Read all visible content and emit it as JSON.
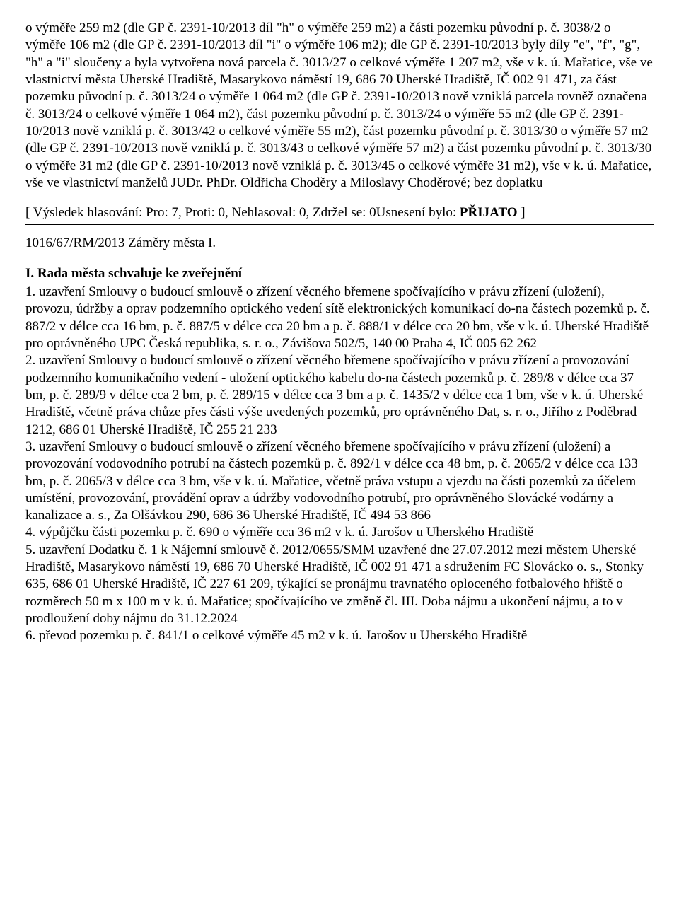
{
  "para1": "o výměře 259 m2 (dle GP č. 2391-10/2013 díl \"h\" o výměře 259 m2) a části pozemku původní p. č. 3038/2 o výměře 106 m2 (dle GP č. 2391-10/2013 díl \"i\" o výměře 106 m2); dle GP č. 2391-10/2013 byly díly \"e\", \"f\", \"g\", \"h\" a \"i\" sloučeny a byla vytvořena nová parcela č. 3013/27 o celkové výměře 1 207 m2, vše v k. ú. Mařatice, vše ve vlastnictví města Uherské Hradiště, Masarykovo náměstí 19, 686 70 Uherské Hradiště, IČ 002 91 471, za část pozemku původní p. č. 3013/24 o výměře 1 064 m2 (dle GP č. 2391-10/2013 nově vzniklá parcela rovněž označena č. 3013/24 o celkové výměře 1 064 m2), část pozemku původní p. č. 3013/24 o výměře 55 m2 (dle GP č. 2391-10/2013 nově vzniklá p. č. 3013/42 o celkové výměře 55 m2), část pozemku původní p. č. 3013/30 o výměře 57 m2 (dle GP č. 2391-10/2013 nově vzniklá p. č. 3013/43 o celkové výměře 57 m2) a část pozemku původní p. č. 3013/30 o výměře 31 m2 (dle GP č. 2391-10/2013 nově vzniklá p. č. 3013/45 o celkové výměře 31 m2), vše v k. ú. Mařatice, vše ve vlastnictví manželů JUDr. PhDr. Oldřicha Choděry a Miloslavy Choděrové; bez doplatku",
  "vote_prefix": "[ Výsledek hlasování: Pro: 7, Proti: 0, Nehlasoval: 0, Zdržel se: 0Usnesení bylo: ",
  "vote_bold": "PŘIJATO",
  "vote_suffix": " ]",
  "ref": "1016/67/RM/2013 Záměry města I.",
  "heading": "I. Rada města schvaluje ke zveřejnění",
  "para2": "1. uzavření Smlouvy o budoucí smlouvě o zřízení věcného břemene spočívajícího v právu zřízení (uložení), provozu, údržby a oprav podzemního optického vedení sítě elektronických komunikací do-na částech pozemků p. č. 887/2 v délce cca 16 bm, p. č. 887/5 v délce cca 20 bm a p. č. 888/1 v délce cca 20 bm, vše v k. ú. Uherské Hradiště pro oprávněného UPC Česká republika, s. r. o., Závišova 502/5, 140 00 Praha 4, IČ 005 62 262\n2. uzavření Smlouvy o budoucí smlouvě o zřízení věcného břemene spočívajícího v právu zřízení a provozování podzemního komunikačního vedení - uložení optického kabelu do-na částech pozemků p. č. 289/8 v délce cca 37 bm, p. č. 289/9 v délce cca 2 bm, p. č. 289/15 v délce cca 3 bm a p. č. 1435/2 v délce cca 1 bm, vše v k. ú. Uherské Hradiště, včetně práva chůze přes části výše uvedených pozemků, pro oprávněného Dat, s. r. o., Jiřího z Poděbrad 1212, 686 01 Uherské Hradiště, IČ 255 21 233\n3. uzavření Smlouvy o budoucí smlouvě o zřízení věcného břemene spočívajícího v právu zřízení (uložení) a provozování vodovodního potrubí na částech pozemků p. č. 892/1 v délce cca 48 bm, p. č. 2065/2 v délce cca 133 bm, p. č. 2065/3 v délce cca 3 bm, vše v k. ú. Mařatice, včetně práva vstupu a vjezdu na části pozemků za účelem umístění, provozování, provádění oprav a údržby vodovodního potrubí, pro oprávněného Slovácké vodárny a kanalizace a. s., Za Olšávkou 290, 686 36 Uherské Hradiště, IČ 494 53 866\n4. výpůjčku části pozemku p. č. 690 o výměře cca 36 m2 v k. ú. Jarošov u Uherského Hradiště\n5. uzavření Dodatku č. 1 k Nájemní smlouvě č. 2012/0655/SMM uzavřené dne 27.07.2012 mezi městem Uherské Hradiště, Masarykovo náměstí 19, 686 70 Uherské Hradiště, IČ 002 91 471 a sdružením FC Slovácko o. s., Stonky 635, 686 01 Uherské Hradiště, IČ 227 61 209, týkající se pronájmu travnatého oploceného fotbalového hřiště o rozměrech 50 m x 100 m v k. ú. Mařatice; spočívajícího ve změně čl. III. Doba nájmu a ukončení nájmu, a to v prodloužení doby nájmu do 31.12.2024\n6. převod pozemku p. č. 841/1 o celkové výměře 45 m2 v k. ú. Jarošov u Uherského Hradiště"
}
